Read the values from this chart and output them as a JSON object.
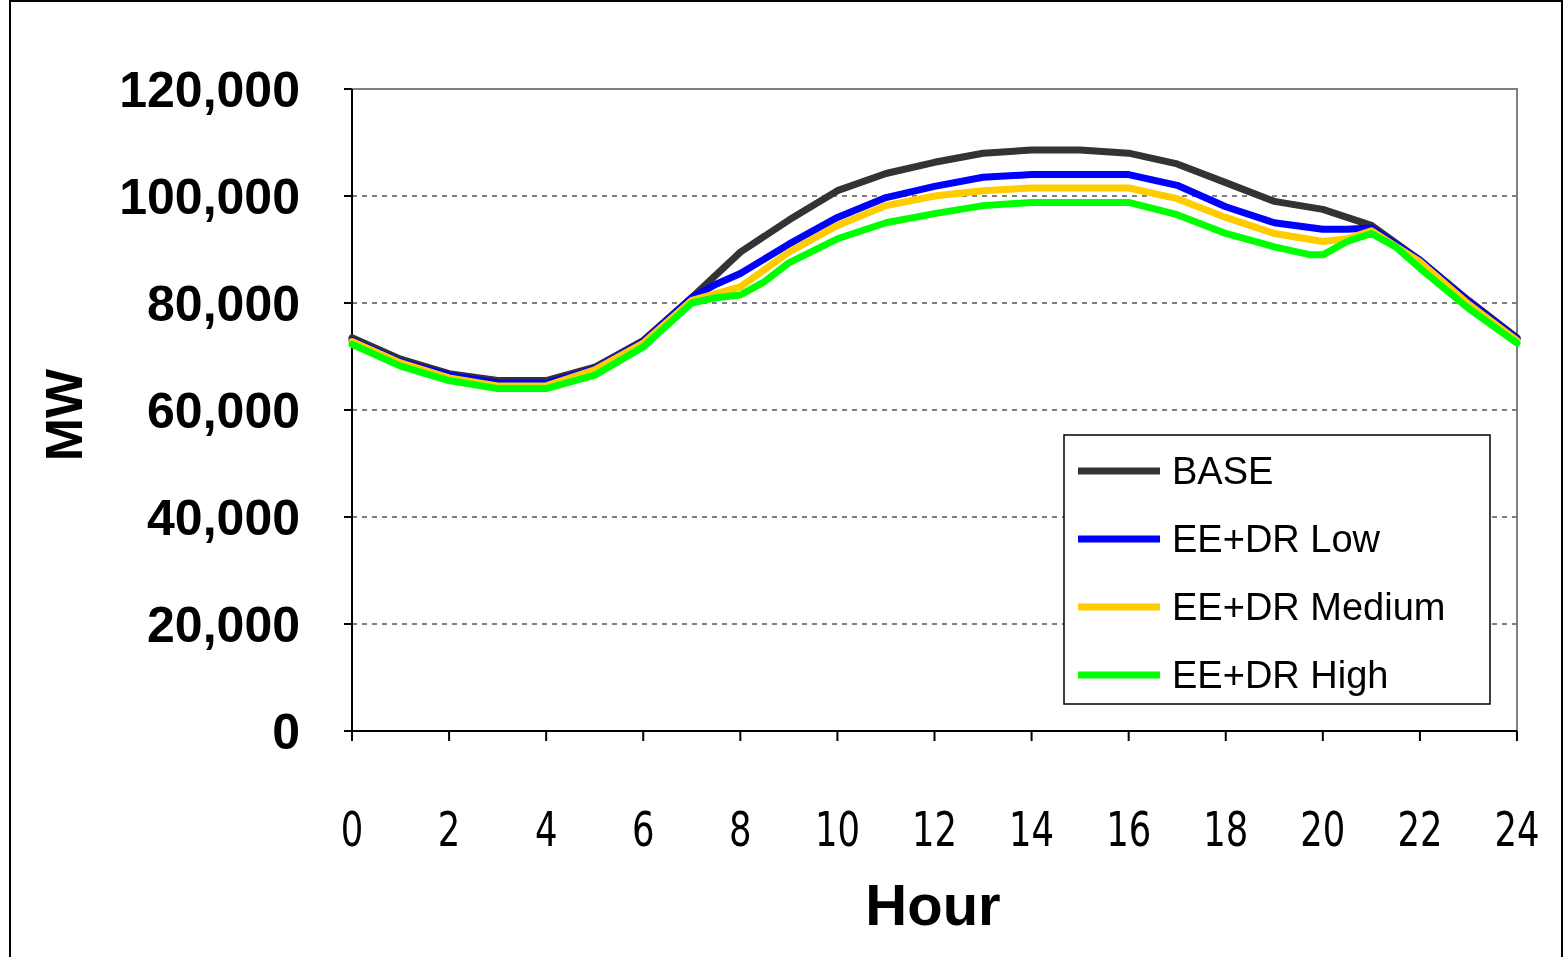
{
  "chart_data": {
    "type": "line",
    "xlabel": "Hour",
    "ylabel": "MW",
    "xlim": [
      0,
      24
    ],
    "xticks": [
      0,
      2,
      4,
      6,
      8,
      10,
      12,
      14,
      16,
      18,
      20,
      22,
      24
    ],
    "ylim": [
      0,
      120000
    ],
    "yticks": [
      {
        "value": 0,
        "label": "0"
      },
      {
        "value": 20000,
        "label": "20,000"
      },
      {
        "value": 40000,
        "label": "40,000"
      },
      {
        "value": 60000,
        "label": "60,000"
      },
      {
        "value": 80000,
        "label": "80,000"
      },
      {
        "value": 100000,
        "label": "100,000"
      },
      {
        "value": 120000,
        "label": "120,000"
      }
    ],
    "grid": "y",
    "legend": "right",
    "line_style": "solid",
    "marker": "none",
    "series": [
      {
        "name": "BASE",
        "color": "#333333",
        "x": [
          0,
          1,
          2,
          3,
          4,
          5,
          6,
          7,
          8,
          9,
          10,
          11,
          12,
          13,
          14,
          15,
          16,
          17,
          18,
          19,
          20,
          21,
          22,
          23,
          24
        ],
        "values": [
          73500,
          69500,
          66800,
          65500,
          65500,
          68000,
          73000,
          81000,
          89500,
          95500,
          101000,
          104200,
          106300,
          108000,
          108600,
          108600,
          108000,
          106000,
          102500,
          99000,
          97500,
          94500,
          88000,
          80500,
          73500
        ]
      },
      {
        "name": "EE+DR Low",
        "color": "#0000ff",
        "x": [
          0,
          1,
          2,
          3,
          4,
          5,
          6,
          7,
          7.5,
          8,
          9,
          10,
          11,
          12,
          13,
          14,
          15,
          16,
          17,
          18,
          19,
          20,
          20.5,
          21,
          22,
          23,
          24
        ],
        "values": [
          73000,
          69000,
          66500,
          65000,
          65000,
          67700,
          72800,
          81000,
          83500,
          85500,
          91000,
          96000,
          99700,
          101800,
          103500,
          104000,
          104000,
          104000,
          102000,
          98000,
          95000,
          93800,
          93800,
          94000,
          88000,
          80300,
          73300
        ]
      },
      {
        "name": "EE+DR Medium",
        "color": "#ffcc00",
        "x": [
          0,
          1,
          2,
          3,
          4,
          5,
          6,
          7,
          8,
          9,
          10,
          11,
          12,
          13,
          14,
          15,
          16,
          17,
          18,
          19,
          20,
          20.5,
          21,
          22,
          23,
          24
        ],
        "values": [
          72800,
          68800,
          66000,
          64500,
          64500,
          67500,
          72500,
          80500,
          83000,
          89500,
          94500,
          98200,
          100000,
          101000,
          101500,
          101500,
          101500,
          99500,
          96000,
          93000,
          91500,
          92000,
          93500,
          87700,
          79800,
          73000
        ]
      },
      {
        "name": "EE+DR High",
        "color": "#00ff00",
        "x": [
          0,
          1,
          2,
          3,
          4,
          5,
          6,
          7,
          7.5,
          8,
          8.5,
          9,
          10,
          11,
          12,
          13,
          14,
          15,
          16,
          17,
          18,
          19,
          19.75,
          20,
          20.5,
          21,
          21.5,
          22,
          23,
          24
        ],
        "values": [
          72300,
          68200,
          65500,
          64000,
          64000,
          66500,
          71800,
          80000,
          81000,
          81500,
          84000,
          87500,
          92000,
          95000,
          96700,
          98200,
          98800,
          98800,
          98800,
          96500,
          93000,
          90500,
          89000,
          89000,
          91500,
          93000,
          90500,
          86500,
          79000,
          72500
        ]
      }
    ]
  }
}
